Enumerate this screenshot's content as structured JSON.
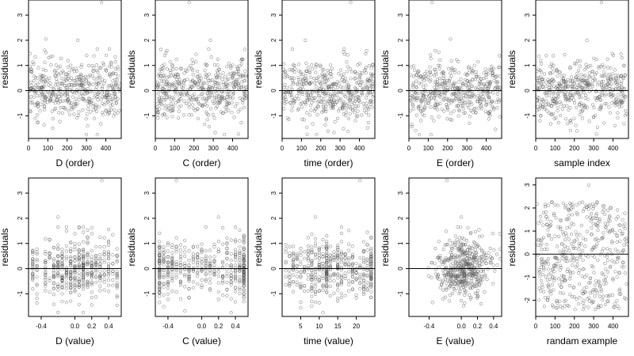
{
  "chart_data": [
    {
      "type": "scatter",
      "xlabel": "D (order)",
      "ylabel": "residuals",
      "x_kind": "index",
      "xlim": [
        0,
        480
      ],
      "ylim": [
        -1.9,
        3.6
      ],
      "xticks": [
        0,
        100,
        200,
        300,
        400
      ],
      "yticks": [
        -1,
        0,
        1,
        2,
        3
      ],
      "reference_line_y": 0,
      "n_points": 465,
      "seed": 11,
      "outliers": [
        {
          "x": 378,
          "y": 3.5
        },
        {
          "x": 90,
          "y": 2.05
        },
        {
          "x": 255,
          "y": 2.0
        }
      ]
    },
    {
      "type": "scatter",
      "xlabel": "C (order)",
      "ylabel": "residuals",
      "x_kind": "index",
      "xlim": [
        0,
        480
      ],
      "ylim": [
        -1.9,
        3.6
      ],
      "xticks": [
        0,
        100,
        200,
        300,
        400
      ],
      "yticks": [
        -1,
        0,
        1,
        2,
        3
      ],
      "reference_line_y": 0,
      "n_points": 465,
      "seed": 23,
      "outliers": [
        {
          "x": 175,
          "y": 3.5
        },
        {
          "x": 285,
          "y": 2.0
        }
      ]
    },
    {
      "type": "scatter",
      "xlabel": "time (order)",
      "ylabel": "residuals",
      "x_kind": "index",
      "xlim": [
        0,
        480
      ],
      "ylim": [
        -1.9,
        3.6
      ],
      "xticks": [
        0,
        100,
        200,
        300,
        400
      ],
      "yticks": [
        -1,
        0,
        1,
        2,
        3
      ],
      "reference_line_y": 0,
      "n_points": 465,
      "seed": 37,
      "outliers": [
        {
          "x": 355,
          "y": 3.5
        },
        {
          "x": 120,
          "y": 2.0
        }
      ]
    },
    {
      "type": "scatter",
      "xlabel": "E (order)",
      "ylabel": "residuals",
      "x_kind": "index",
      "xlim": [
        0,
        480
      ],
      "ylim": [
        -1.9,
        3.6
      ],
      "xticks": [
        0,
        100,
        200,
        300,
        400
      ],
      "yticks": [
        -1,
        0,
        1,
        2,
        3
      ],
      "reference_line_y": 0,
      "n_points": 465,
      "seed": 41,
      "outliers": [
        {
          "x": 120,
          "y": 3.5
        },
        {
          "x": 215,
          "y": 2.05
        }
      ]
    },
    {
      "type": "scatter",
      "xlabel": "sample index",
      "ylabel": "residuals",
      "x_kind": "index",
      "xlim": [
        0,
        480
      ],
      "ylim": [
        -1.9,
        3.6
      ],
      "xticks": [
        0,
        100,
        200,
        300,
        400
      ],
      "yticks": [
        -1,
        0,
        1,
        2,
        3
      ],
      "reference_line_y": 0,
      "n_points": 465,
      "seed": 53,
      "outliers": [
        {
          "x": 340,
          "y": 3.5
        },
        {
          "x": 265,
          "y": 2.0
        }
      ]
    },
    {
      "type": "scatter",
      "xlabel": "D (value)",
      "ylabel": "residuals",
      "x_kind": "discrete",
      "xlim": [
        -0.55,
        0.55
      ],
      "ylim": [
        -1.9,
        3.6
      ],
      "xticks": [
        -0.4,
        0.0,
        0.2,
        0.4
      ],
      "xtick_labels": [
        "-0.4",
        "0.0",
        "0.2",
        "0.4"
      ],
      "yticks": [
        -1,
        0,
        1,
        2,
        3
      ],
      "reference_line_y": 0,
      "levels": [
        -0.5,
        -0.45,
        -0.35,
        -0.3,
        -0.25,
        -0.2,
        -0.15,
        -0.1,
        -0.05,
        0.0,
        0.05,
        0.1,
        0.15,
        0.2,
        0.25,
        0.3,
        0.35,
        0.4,
        0.45,
        0.5
      ],
      "level_weights": [
        3,
        2,
        3,
        2,
        4,
        3,
        5,
        4,
        6,
        5,
        6,
        9,
        4,
        5,
        3,
        4,
        2,
        3,
        2,
        2
      ],
      "n_points": 465,
      "seed": 67,
      "outliers": [
        {
          "x": 0.32,
          "y": 3.5
        },
        {
          "x": -0.2,
          "y": 2.05
        }
      ]
    },
    {
      "type": "scatter",
      "xlabel": "C (value)",
      "ylabel": "residuals",
      "x_kind": "discrete",
      "xlim": [
        -0.55,
        0.55
      ],
      "ylim": [
        -1.9,
        3.6
      ],
      "xticks": [
        -0.4,
        0.0,
        0.2,
        0.4
      ],
      "xtick_labels": [
        "-0.4",
        "0.0",
        "0.2",
        "0.4"
      ],
      "yticks": [
        -1,
        0,
        1,
        2,
        3
      ],
      "reference_line_y": 0,
      "levels": [
        -0.5,
        -0.45,
        -0.4,
        -0.35,
        -0.3,
        -0.25,
        -0.2,
        -0.15,
        -0.1,
        -0.05,
        0.0,
        0.05,
        0.1,
        0.15,
        0.2,
        0.25,
        0.3,
        0.35,
        0.4,
        0.45,
        0.5
      ],
      "level_weights": [
        12,
        6,
        4,
        3,
        3,
        3,
        3,
        3,
        3,
        3,
        3,
        3,
        3,
        3,
        3,
        3,
        3,
        4,
        4,
        6,
        14
      ],
      "n_points": 465,
      "seed": 79,
      "outliers": [
        {
          "x": -0.3,
          "y": 3.5
        },
        {
          "x": 0.2,
          "y": 2.05
        }
      ]
    },
    {
      "type": "scatter",
      "xlabel": "time (value)",
      "ylabel": "residuals",
      "x_kind": "discrete",
      "xlim": [
        0,
        25
      ],
      "ylim": [
        -1.9,
        3.6
      ],
      "xticks": [
        5,
        10,
        15,
        20
      ],
      "yticks": [
        -1,
        0,
        1,
        2,
        3
      ],
      "reference_line_y": 0,
      "levels": [
        1,
        2,
        3,
        4,
        5,
        6,
        7,
        8,
        9,
        10,
        11,
        12,
        13,
        14,
        15,
        16,
        17,
        18,
        19,
        20,
        21,
        22,
        23,
        24
      ],
      "level_weights": [
        2,
        3,
        4,
        3,
        4,
        3,
        4,
        5,
        4,
        4,
        5,
        10,
        4,
        4,
        5,
        4,
        4,
        4,
        5,
        4,
        3,
        4,
        5,
        9
      ],
      "n_points": 465,
      "seed": 83,
      "outliers": [
        {
          "x": 21,
          "y": 3.5
        },
        {
          "x": 9,
          "y": 2.05
        }
      ]
    },
    {
      "type": "scatter",
      "xlabel": "E (value)",
      "ylabel": "residuals",
      "x_kind": "continuous",
      "xlim": [
        -0.65,
        0.5
      ],
      "ylim": [
        -1.9,
        3.6
      ],
      "xticks": [
        -0.4,
        0.0,
        0.2,
        0.4
      ],
      "xtick_labels": [
        "-0.4",
        "0.0",
        "0.2",
        "0.4"
      ],
      "yticks": [
        -1,
        0,
        1,
        2,
        3
      ],
      "reference_line_y": 0,
      "x_center": 0.03,
      "x_spread": 0.17,
      "n_points": 465,
      "seed": 97,
      "outliers": [
        {
          "x": -0.18,
          "y": 3.5
        },
        {
          "x": 0.0,
          "y": 2.05
        }
      ]
    },
    {
      "type": "scatter",
      "xlabel": "randam example",
      "ylabel": "residuals",
      "x_kind": "index",
      "xlim": [
        0,
        480
      ],
      "ylim": [
        -2.7,
        3.3
      ],
      "xticks": [
        0,
        100,
        200,
        300,
        400
      ],
      "yticks": [
        -2,
        -1,
        0,
        1,
        2,
        3
      ],
      "reference_line_y": 0,
      "n_points": 465,
      "seed": 101,
      "uniform_y": [
        -2.4,
        2.3
      ],
      "outliers": [
        {
          "x": 275,
          "y": 3.0
        }
      ]
    }
  ]
}
